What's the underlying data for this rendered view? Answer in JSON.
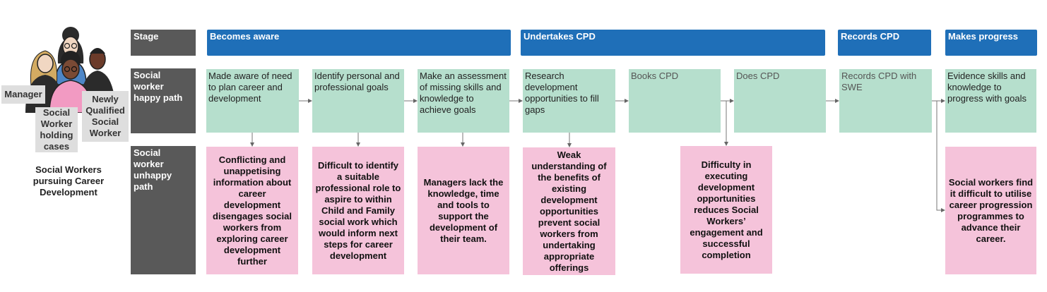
{
  "personas": {
    "manager": "Manager",
    "social_worker": "Social Worker holding cases",
    "nqsw": "Newly Qualified Social Worker",
    "caption": "Social Workers pursuing Career Development"
  },
  "rows": {
    "stage": "Stage",
    "happy": "Social worker happy path",
    "unhappy": "Social worker unhappy path"
  },
  "stages": {
    "aware": "Becomes aware",
    "cpd": "Undertakes CPD",
    "records": "Records CPD",
    "progress": "Makes progress"
  },
  "happy_path": {
    "made_aware": "Made aware of need to plan career and development",
    "identify": "Identify personal and professional goals",
    "assessment": "Make an assessment of missing skills and knowledge to achieve goals",
    "research": "Research development opportunities to fill gaps",
    "books": "Books CPD",
    "does": "Does CPD",
    "records": "Records CPD with SWE",
    "evidence": "Evidence skills and knowledge to progress with goals"
  },
  "unhappy_path": {
    "conflicting": "Conflicting and unappetising information about career development disengages social workers from exploring career development further",
    "difficult_role": "Difficult to identify a suitable professional role to aspire to within Child and Family social work which would inform next steps for career development",
    "managers": "Managers lack the knowledge, time and tools to support the development of their team.",
    "weak": "Weak understanding of the benefits of existing development opportunities prevent social workers from undertaking appropriate offerings",
    "executing": "Difficulty in executing development opportunities reduces Social Workers’ engagement and successful completion",
    "programmes": "Social workers find it difficult to utilise career progression programmes to advance their career."
  },
  "colors": {
    "stage": "#1f6fb8",
    "row_header": "#595959",
    "happy": "#b6dfcd",
    "unhappy": "#f5c3da",
    "tag": "#dedede"
  }
}
